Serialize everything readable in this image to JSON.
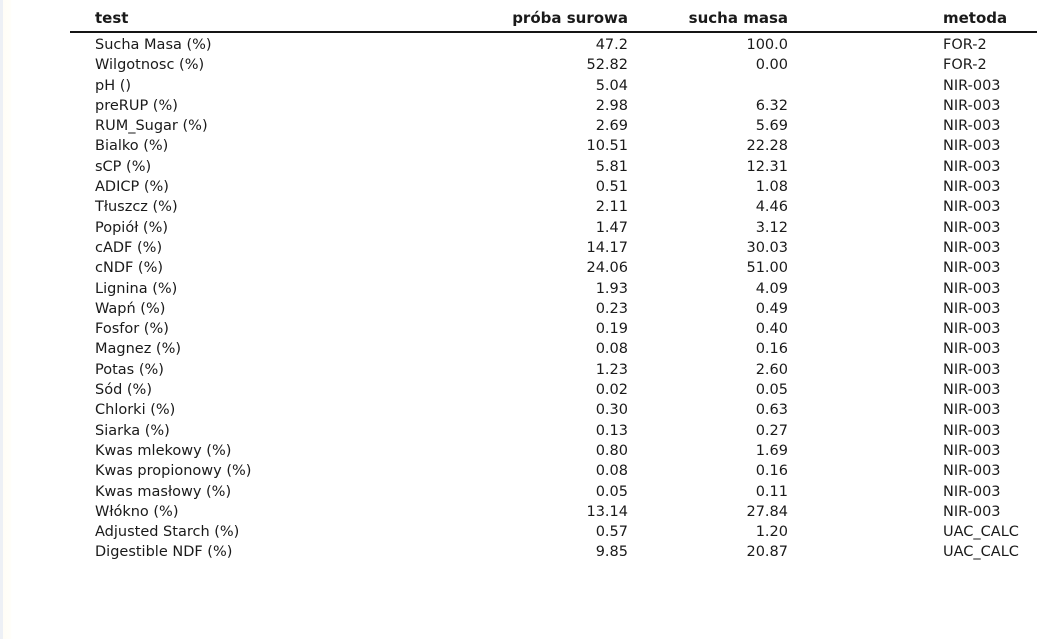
{
  "table": {
    "columns": [
      "test",
      "próba surowa",
      "sucha masa",
      "metoda"
    ],
    "rows": [
      [
        "Sucha Masa (%)",
        "47.2",
        "100.0",
        "FOR-2"
      ],
      [
        "Wilgotnosc (%)",
        "52.82",
        "0.00",
        "FOR-2"
      ],
      [
        "pH ()",
        "5.04",
        "",
        "NIR-003"
      ],
      [
        "preRUP (%)",
        "2.98",
        "6.32",
        "NIR-003"
      ],
      [
        "RUM_Sugar (%)",
        "2.69",
        "5.69",
        "NIR-003"
      ],
      [
        "Bialko (%)",
        "10.51",
        "22.28",
        "NIR-003"
      ],
      [
        "sCP (%)",
        "5.81",
        "12.31",
        "NIR-003"
      ],
      [
        "ADICP (%)",
        "0.51",
        "1.08",
        "NIR-003"
      ],
      [
        "Tłuszcz (%)",
        "2.11",
        "4.46",
        "NIR-003"
      ],
      [
        "Popiół (%)",
        "1.47",
        "3.12",
        "NIR-003"
      ],
      [
        "cADF (%)",
        "14.17",
        "30.03",
        "NIR-003"
      ],
      [
        "cNDF (%)",
        "24.06",
        "51.00",
        "NIR-003"
      ],
      [
        "Lignina (%)",
        "1.93",
        "4.09",
        "NIR-003"
      ],
      [
        "Wapń (%)",
        "0.23",
        "0.49",
        "NIR-003"
      ],
      [
        "Fosfor (%)",
        "0.19",
        "0.40",
        "NIR-003"
      ],
      [
        "Magnez (%)",
        "0.08",
        "0.16",
        "NIR-003"
      ],
      [
        "Potas (%)",
        "1.23",
        "2.60",
        "NIR-003"
      ],
      [
        "Sód (%)",
        "0.02",
        "0.05",
        "NIR-003"
      ],
      [
        "Chlorki (%)",
        "0.30",
        "0.63",
        "NIR-003"
      ],
      [
        "Siarka (%)",
        "0.13",
        "0.27",
        "NIR-003"
      ],
      [
        "Kwas mlekowy (%)",
        "0.80",
        "1.69",
        "NIR-003"
      ],
      [
        "Kwas propionowy (%)",
        "0.08",
        "0.16",
        "NIR-003"
      ],
      [
        "Kwas masłowy (%)",
        "0.05",
        "0.11",
        "NIR-003"
      ],
      [
        "Włókno (%)",
        "13.14",
        "27.84",
        "NIR-003"
      ],
      [
        "Adjusted Starch (%)",
        "0.57",
        "1.20",
        "UAC_CALC"
      ],
      [
        "Digestible NDF (%)",
        "9.85",
        "20.87",
        "UAC_CALC"
      ]
    ]
  }
}
